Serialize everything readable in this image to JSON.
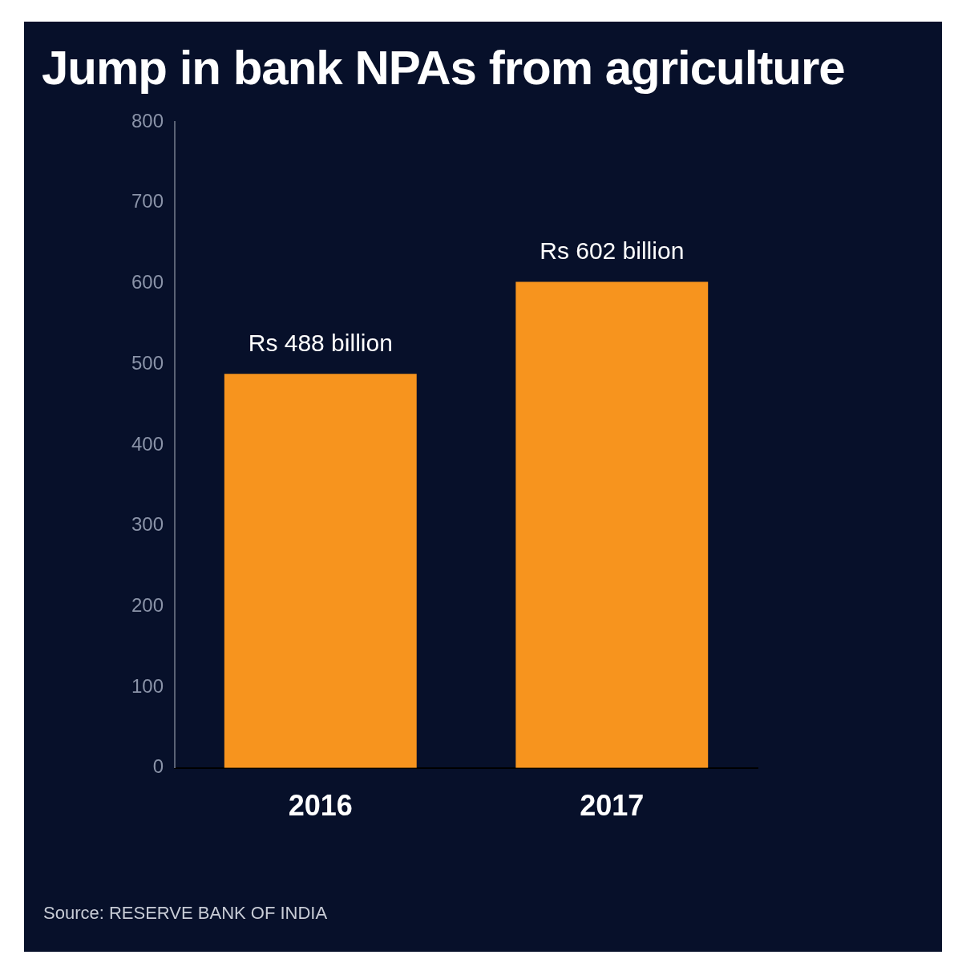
{
  "chart_data": {
    "type": "bar",
    "title": "Jump in bank NPAs from agriculture",
    "categories": [
      "2016",
      "2017"
    ],
    "values": [
      488,
      602
    ],
    "value_labels": [
      "Rs 488 billion",
      "Rs 602 billion"
    ],
    "color": "#f7941e",
    "ylim": [
      0,
      800
    ],
    "yticks": [
      0,
      100,
      200,
      300,
      400,
      500,
      600,
      700,
      800
    ],
    "grid": false,
    "annotations": [
      "Source: RESERVE BANK OF INDIA"
    ]
  }
}
